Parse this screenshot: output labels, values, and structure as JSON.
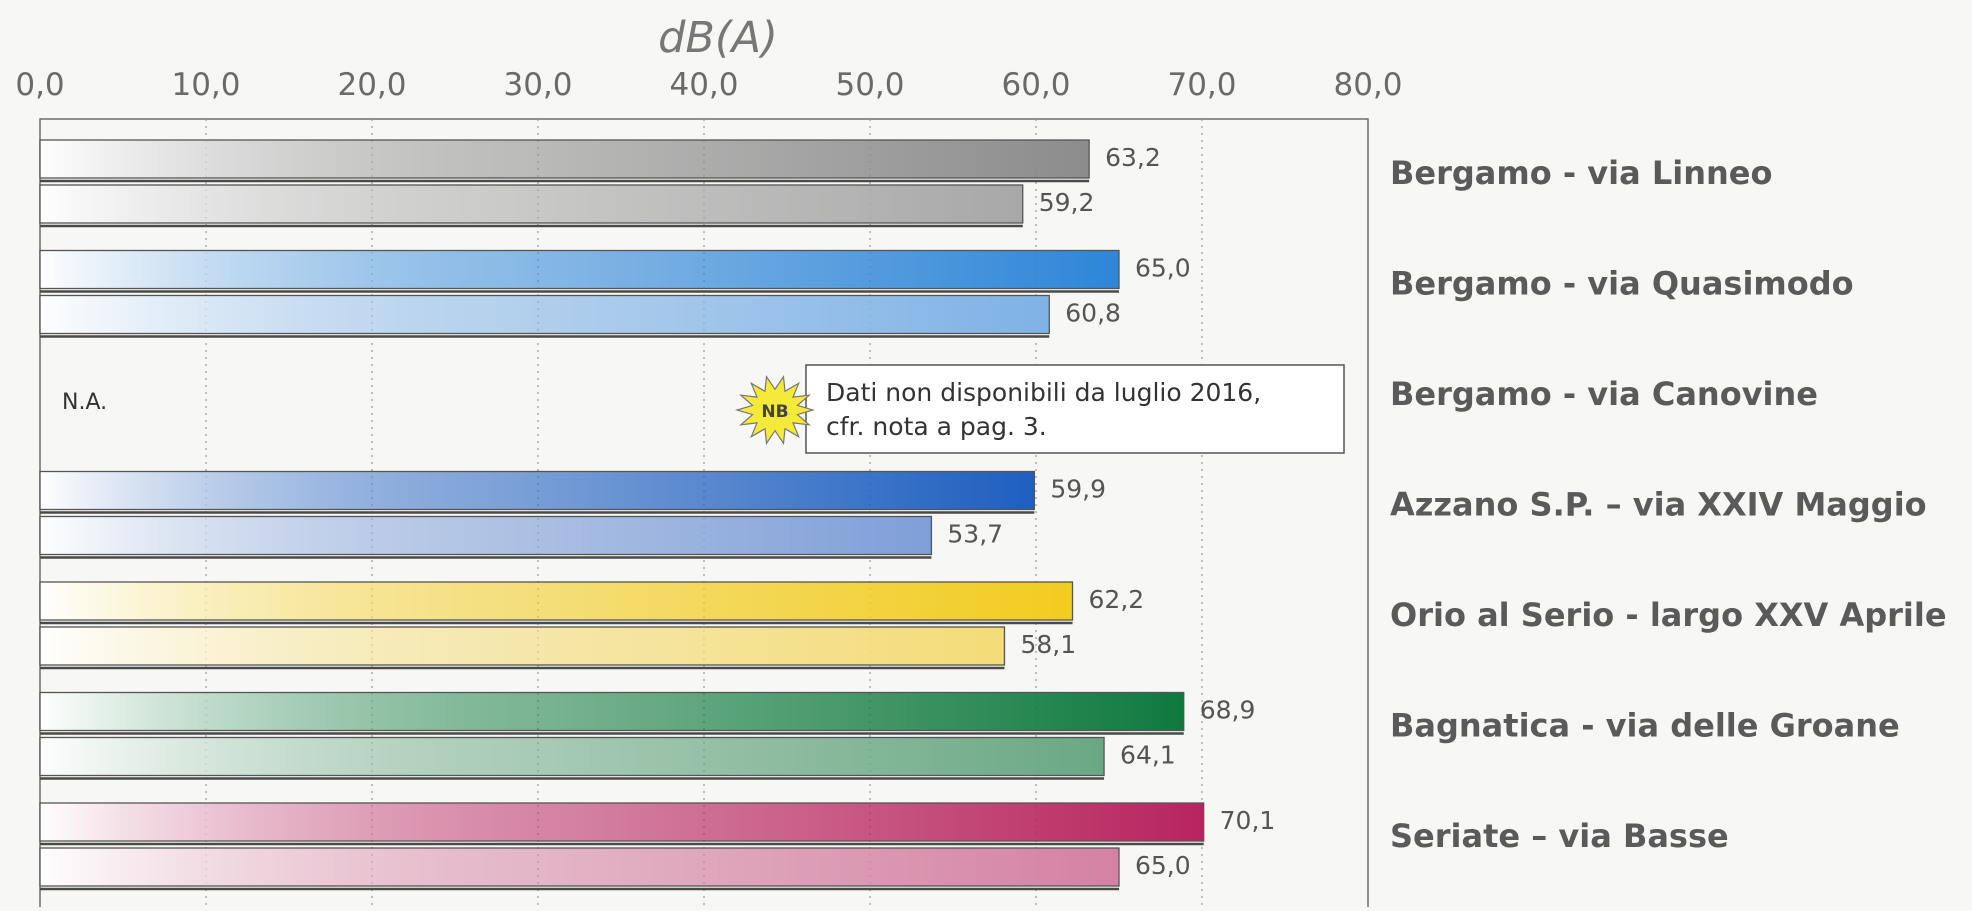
{
  "chart_data": {
    "type": "bar",
    "orientation": "horizontal",
    "title": "dB(A)",
    "xlim": [
      0,
      80
    ],
    "x_ticks": [
      "0,0",
      "10,0",
      "20,0",
      "30,0",
      "40,0",
      "50,0",
      "60,0",
      "70,0",
      "80,0"
    ],
    "x_axis_position": "top",
    "grid": "vertical dotted",
    "legend": "none",
    "categories": [
      {
        "label": "Bergamo - via Linneo",
        "values": [
          63.2,
          59.2
        ],
        "value_labels": [
          "63,2",
          "59,2"
        ],
        "colors": [
          "#8c8c8c",
          "#a8a8a8"
        ]
      },
      {
        "label": "Bergamo - via Quasimodo",
        "values": [
          65.0,
          60.8
        ],
        "value_labels": [
          "65,0",
          "60,8"
        ],
        "colors": [
          "#2e86d8",
          "#7fb2e6"
        ]
      },
      {
        "label": "Bergamo - via Canovine",
        "values": [],
        "value_labels": [],
        "colors": [],
        "missing_label": "N.A."
      },
      {
        "label": "Azzano S.P. – via XXIV Maggio",
        "values": [
          59.9,
          53.7
        ],
        "value_labels": [
          "59,9",
          "53,7"
        ],
        "colors": [
          "#1e5fc0",
          "#7f9fd8"
        ]
      },
      {
        "label": "Orio al Serio - largo XXV Aprile",
        "values": [
          62.2,
          58.1
        ],
        "value_labels": [
          "62,2",
          "58,1"
        ],
        "colors": [
          "#f2cc1e",
          "#f4dc78"
        ]
      },
      {
        "label": "Bagnatica - via delle Groane",
        "values": [
          68.9,
          64.1
        ],
        "value_labels": [
          "68,9",
          "64,1"
        ],
        "colors": [
          "#0f7a3e",
          "#6aa884"
        ]
      },
      {
        "label": "Seriate – via Basse",
        "values": [
          70.1,
          65.0
        ],
        "value_labels": [
          "70,1",
          "65,0"
        ],
        "colors": [
          "#b8245e",
          "#d482a2"
        ]
      }
    ],
    "annotation": {
      "badge": "NB",
      "lines": [
        "Dati non disponibili da luglio 2016,",
        "cfr. nota a pag. 3."
      ]
    }
  }
}
